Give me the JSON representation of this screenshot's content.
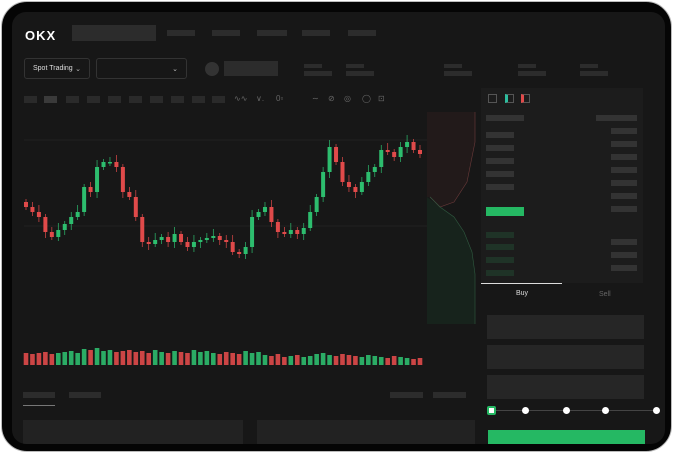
{
  "header": {
    "logo": "OKX",
    "market_selector": "Spot Trading"
  },
  "order_form": {
    "tabs": [
      "Buy",
      "Sell"
    ],
    "active_tab": "Buy",
    "slider_percent": 0,
    "slider_steps": 5
  },
  "colors": {
    "up": "#2dbd6e",
    "down": "#e04a4a",
    "accent": "#25b863"
  },
  "icons": [
    "chevron-down-icon",
    "order-book-both-icon",
    "order-book-buy-icon",
    "order-book-sell-icon"
  ],
  "chart_data": {
    "type": "candlestick",
    "closes": [
      95,
      90,
      85,
      70,
      65,
      72,
      78,
      85,
      90,
      115,
      110,
      135,
      140,
      140,
      135,
      110,
      105,
      85,
      60,
      58,
      62,
      65,
      60,
      68,
      60,
      55,
      60,
      62,
      64,
      66,
      62,
      60,
      50,
      48,
      55,
      85,
      90,
      95,
      80,
      70,
      68,
      72,
      68,
      74,
      90,
      105,
      130,
      155,
      140,
      120,
      115,
      110,
      120,
      130,
      135,
      152,
      150,
      145,
      155,
      160,
      152,
      148
    ],
    "volumes": [
      12,
      11,
      12,
      13,
      11,
      12,
      13,
      14,
      12,
      16,
      15,
      17,
      14,
      15,
      13,
      14,
      15,
      13,
      14,
      12,
      15,
      13,
      12,
      14,
      13,
      12,
      15,
      13,
      14,
      12,
      11,
      13,
      12,
      11,
      14,
      12,
      13,
      10,
      9,
      11,
      8,
      9,
      10,
      8,
      9,
      11,
      12,
      10,
      9,
      11,
      10,
      9,
      8,
      10,
      9,
      8,
      7,
      9,
      8,
      7,
      6,
      7
    ]
  }
}
